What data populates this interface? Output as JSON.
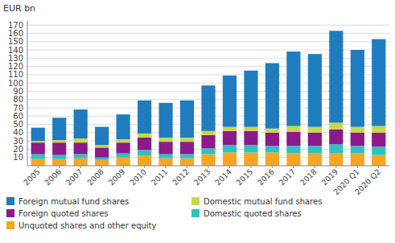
{
  "chart_data": {
    "type": "bar",
    "stacked": true,
    "ylabel": "EUR bn",
    "categories": [
      "2005",
      "2006",
      "2007",
      "2008",
      "2009",
      "2010",
      "2011",
      "2012",
      "2013",
      "2014",
      "2015",
      "2016",
      "2017",
      "2018",
      "2019",
      "2020 Q1",
      "2020 Q2"
    ],
    "series": [
      {
        "name": "Unquoted shares and other equity",
        "color": "#f5a623",
        "values": [
          8,
          8,
          9,
          7,
          10,
          12,
          9,
          9,
          14,
          16,
          16,
          16,
          15,
          15,
          15,
          15,
          13
        ]
      },
      {
        "name": "Domestic quoted shares",
        "color": "#32bfbf",
        "values": [
          6,
          5,
          5,
          3,
          5,
          7,
          5,
          5,
          7,
          9,
          9,
          8,
          9,
          9,
          11,
          9,
          10
        ]
      },
      {
        "name": "Foreign quoted shares",
        "color": "#8b1a8b",
        "values": [
          14,
          15,
          14,
          12,
          13,
          15,
          15,
          15,
          16,
          17,
          17,
          16,
          17,
          16,
          18,
          16,
          17
        ]
      },
      {
        "name": "Domestic mutual fund shares",
        "color": "#c6d84b",
        "values": [
          2,
          3,
          5,
          3,
          4,
          5,
          5,
          5,
          5,
          5,
          5,
          5,
          7,
          7,
          8,
          7,
          8
        ]
      },
      {
        "name": "Foreign mutual fund shares",
        "color": "#1f7dbf",
        "values": [
          16,
          27,
          35,
          22,
          30,
          40,
          42,
          45,
          55,
          62,
          68,
          79,
          90,
          88,
          111,
          93,
          105
        ]
      }
    ],
    "ylim": [
      0,
      175
    ],
    "yticks": [
      10,
      20,
      30,
      40,
      50,
      60,
      70,
      80,
      90,
      100,
      110,
      120,
      130,
      140,
      150,
      160,
      170
    ],
    "grid": true,
    "legend": "bottom"
  }
}
